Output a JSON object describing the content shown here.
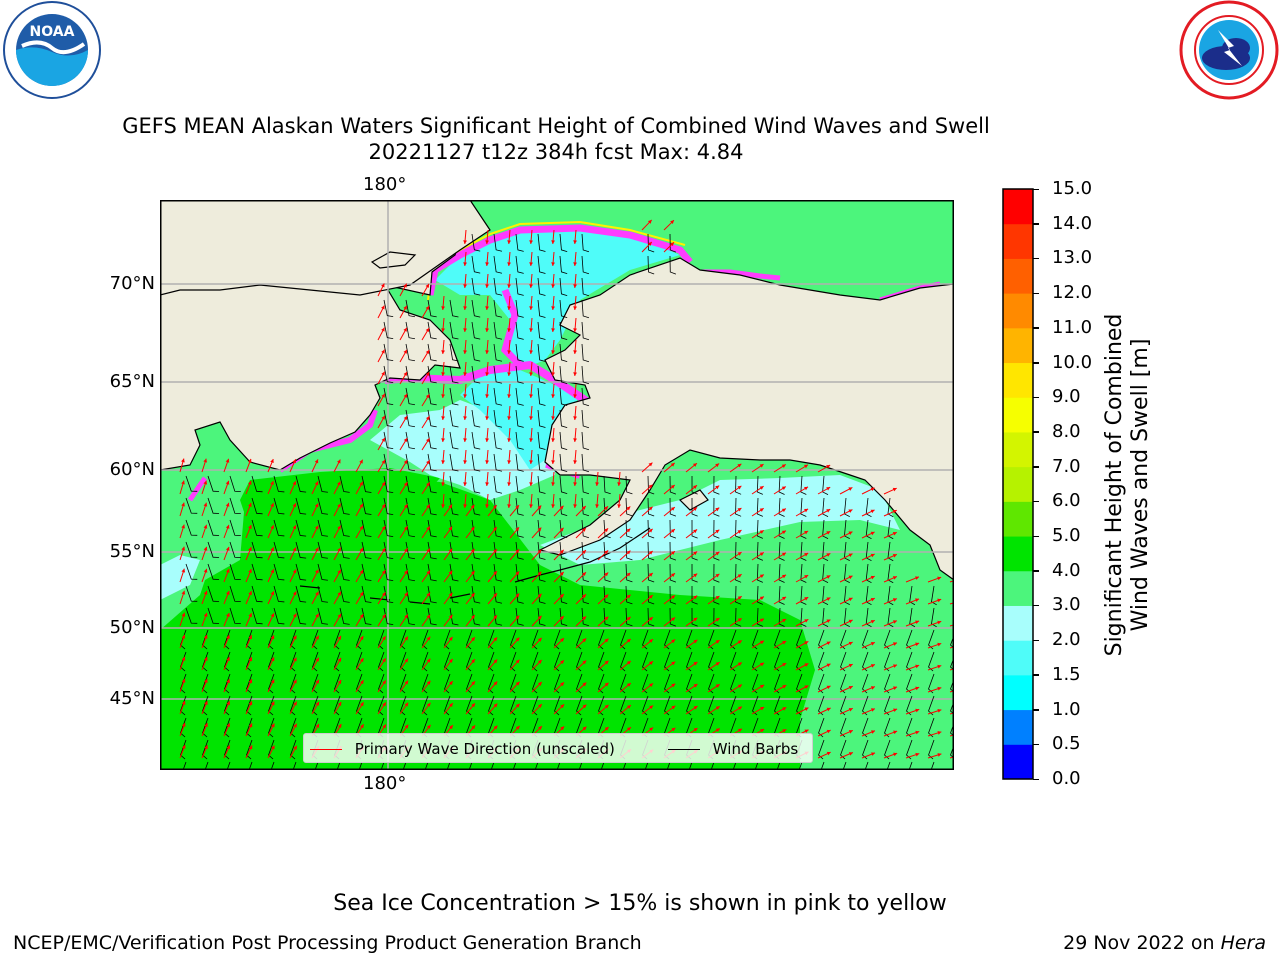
{
  "header": {
    "title_line1": "GEFS MEAN Alaskan Waters Significant Height of Combined Wind Waves and Swell",
    "title_line2": "20221127 t12z 384h fcst   Max: 4.84"
  },
  "logos": {
    "left": {
      "text": "NOAA",
      "ring_text": "NATIONAL OCEANIC AND ATMOSPHERIC ADMINISTRATION · U.S. DEPARTMENT OF COMMERCE"
    },
    "right": {
      "ring_text": "NATIONAL WEATHER SERVICE"
    }
  },
  "map": {
    "lat_labels": [
      "70°N",
      "65°N",
      "60°N",
      "55°N",
      "50°N",
      "45°N"
    ],
    "lon_label_top": "180°",
    "lon_label_bottom": "180°",
    "colors": {
      "land": "#eeecdc",
      "green": "#00e400",
      "light_green": "#4cf57c",
      "very_light_cyan": "#a8fefc",
      "light_cyan": "#4ffcf9",
      "ice_pink": "#ff3cff",
      "ice_yellow": "#fff200",
      "wave_arrow": "#ff0000",
      "wind_barb": "#000000"
    }
  },
  "legend": {
    "wave_label": "Primary Wave Direction (unscaled)",
    "wind_label": "Wind Barbs"
  },
  "colorbar": {
    "label_line1": "Significant Height of Combined",
    "label_line2": "Wind Waves and Swell [m]",
    "ticks": [
      "0.0",
      "0.5",
      "1.0",
      "1.5",
      "2.0",
      "3.0",
      "4.0",
      "5.0",
      "6.0",
      "7.0",
      "8.0",
      "9.0",
      "10.0",
      "11.0",
      "12.0",
      "13.0",
      "14.0",
      "15.0"
    ],
    "colors": [
      "#0000ff",
      "#0080ff",
      "#00ffff",
      "#4ffcf9",
      "#a8fefc",
      "#4cf57c",
      "#00e400",
      "#5fe700",
      "#b6f200",
      "#d3f500",
      "#f6ff00",
      "#ffe600",
      "#ffb400",
      "#ff8a00",
      "#ff6000",
      "#ff3600",
      "#ff0000"
    ]
  },
  "footer": {
    "ice_note": "Sea Ice Concentration > 15% is shown in pink to yellow",
    "branch": "NCEP/EMC/Verification Post Processing Product Generation Branch",
    "date_prefix": "29 Nov 2022 on ",
    "machine": "Hera"
  }
}
